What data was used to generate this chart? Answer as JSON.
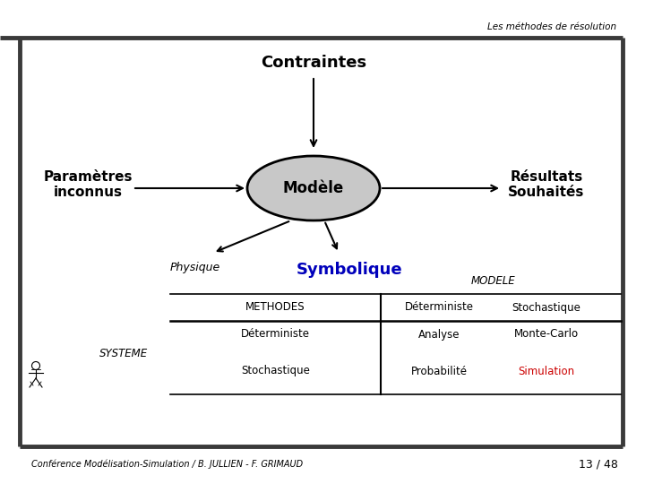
{
  "title": "Les méthodes de résolution",
  "contraintes": "Contraintes",
  "modele": "Modèle",
  "parametres": "Paramètres\ninconnus",
  "resultats": "Résultats\nSouhaités",
  "physique": "Physique",
  "symbolique": "Symbolique",
  "table_header_col0": "METHODES",
  "table_header_col1": "Déterministe",
  "table_header_col2": "Stochastique",
  "table_modele_label": "MODELE",
  "table_row1_col0": "Déterministe",
  "table_row1_col1": "Analyse",
  "table_row1_col2": "Monte-Carlo",
  "table_row2_col0": "Stochastique",
  "table_row2_col1": "Probabilité",
  "table_row2_col2": "Simulation",
  "systeme": "SYSTEME",
  "footer": "Conférence Modélisation-Simulation / B. JULLIEN - F. GRIMAUD",
  "page": "13 / 48",
  "bg_color": "#ffffff",
  "ellipse_facecolor": "#c8c8c8",
  "ellipse_edgecolor": "#000000",
  "arrow_color": "#000000",
  "line_color": "#3a3a3a",
  "symbolique_color": "#0000bb",
  "simulation_color": "#cc0000",
  "text_color": "#000000",
  "table_line_color": "#000000"
}
